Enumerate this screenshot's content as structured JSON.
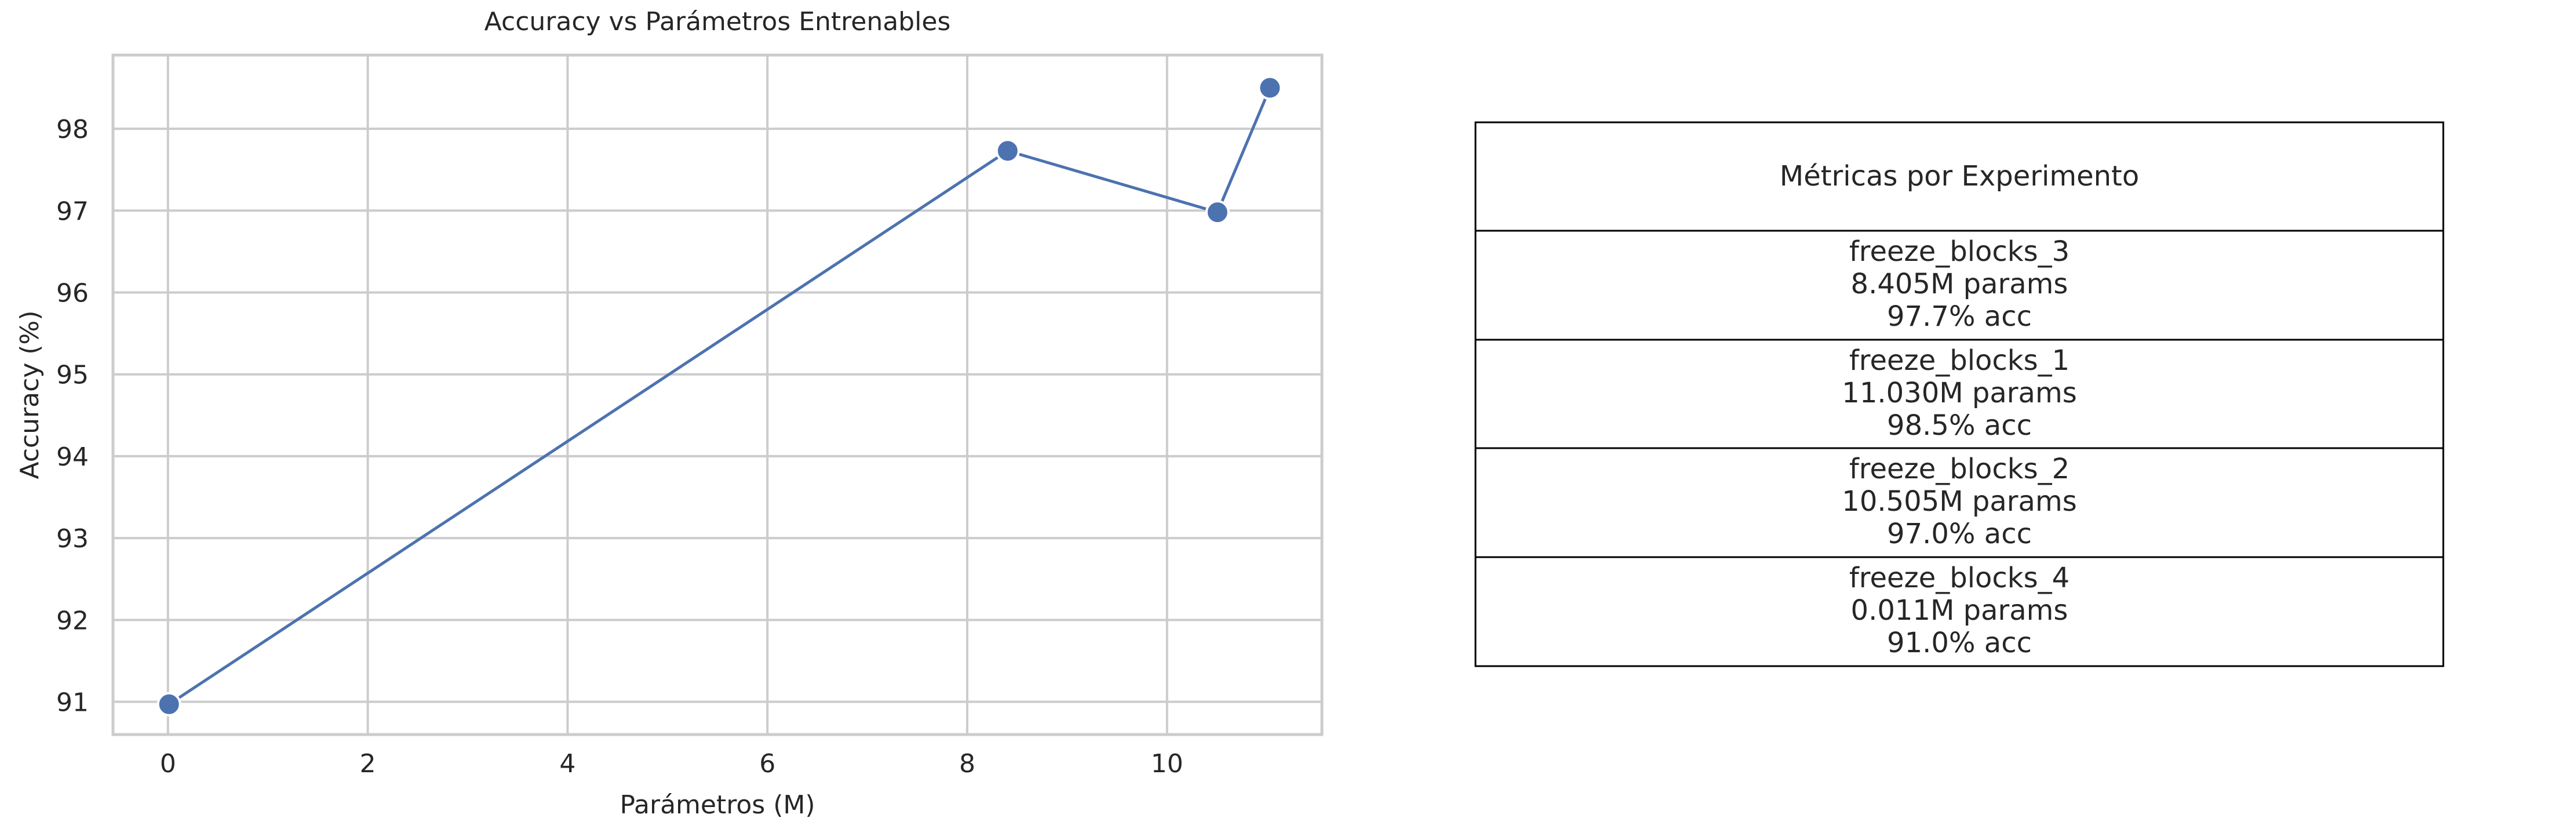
{
  "chart_data": [
    {
      "type": "line",
      "title": "Accuracy vs Parámetros Entrenables",
      "xlabel": "Parámetros (M)",
      "ylabel": "Accuracy (%)",
      "xlim": [
        -0.55,
        11.55
      ],
      "ylim": [
        90.6,
        98.9
      ],
      "xticks": [
        "0",
        "2",
        "4",
        "6",
        "8",
        "10"
      ],
      "yticks": [
        "91",
        "92",
        "93",
        "94",
        "95",
        "96",
        "97",
        "98"
      ],
      "grid": true,
      "legend": "none",
      "series": [
        {
          "color": "#4c72b0",
          "marker": "circle",
          "x": [
            0.011,
            8.405,
            10.505,
            11.03
          ],
          "y": [
            90.97,
            97.73,
            96.98,
            98.5
          ]
        }
      ]
    },
    {
      "type": "table",
      "title": "Métricas por Experimento",
      "rows": [
        [
          "freeze_blocks_3",
          "8.405M params",
          "97.7% acc"
        ],
        [
          "freeze_blocks_1",
          "11.030M params",
          "98.5% acc"
        ],
        [
          "freeze_blocks_2",
          "10.505M params",
          "97.0% acc"
        ],
        [
          "freeze_blocks_4",
          "0.011M params",
          "91.0% acc"
        ]
      ]
    }
  ],
  "colors": {
    "line": "#4c72b0",
    "grid": "#cccccc",
    "text": "#262626",
    "table_border": "#000000"
  }
}
